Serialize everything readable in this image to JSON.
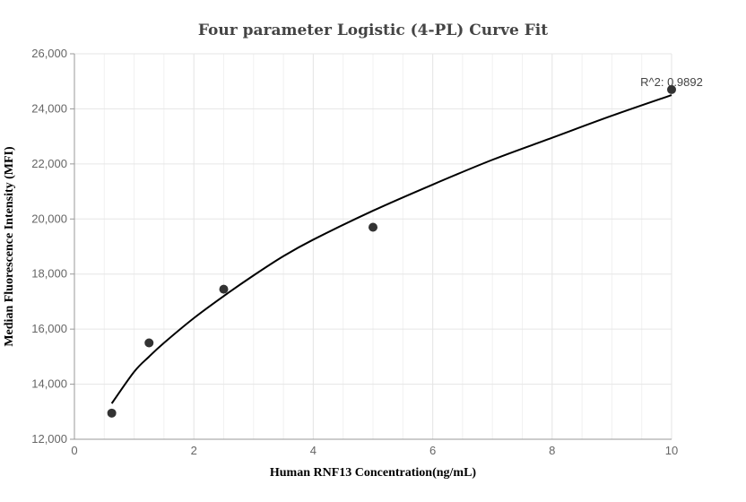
{
  "chart_data": {
    "type": "scatter",
    "title": "Four parameter Logistic (4-PL) Curve Fit",
    "xlabel": "Human RNF13 Concentration(ng/mL)",
    "ylabel": "Median Fluorescence Intensity (MFI)",
    "xlim": [
      0,
      10
    ],
    "ylim": [
      12000,
      26000
    ],
    "xticks": [
      0,
      2,
      4,
      6,
      8,
      10
    ],
    "xtick_labels": [
      "0",
      "2",
      "4",
      "6",
      "8",
      "10"
    ],
    "yticks": [
      12000,
      14000,
      16000,
      18000,
      20000,
      22000,
      24000,
      26000
    ],
    "ytick_labels": [
      "12,000",
      "14,000",
      "16,000",
      "18,000",
      "20,000",
      "22,000",
      "24,000",
      "26,000"
    ],
    "grid": true,
    "series": [
      {
        "type": "scatter",
        "x": [
          0.625,
          1.25,
          2.5,
          5,
          10
        ],
        "y": [
          12950,
          15500,
          17450,
          19700,
          24700
        ]
      },
      {
        "type": "line",
        "x": [
          0.625,
          1.0,
          1.25,
          1.5,
          2.0,
          2.5,
          3.0,
          3.5,
          4.0,
          5.0,
          6.0,
          7.0,
          8.0,
          9.0,
          10.0
        ],
        "y": [
          13300,
          14450,
          15000,
          15500,
          16400,
          17200,
          17950,
          18650,
          19250,
          20300,
          21250,
          22150,
          22950,
          23750,
          24500
        ]
      }
    ],
    "annotations": [
      "R^2: 0.9892"
    ],
    "colors": {
      "points": "#333333",
      "curve": "#000000",
      "grid": "#e6e6e6"
    }
  }
}
